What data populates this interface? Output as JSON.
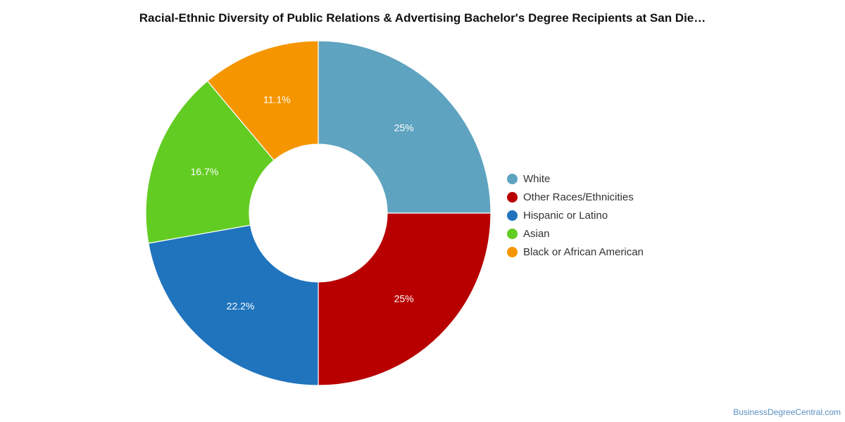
{
  "chart_data": {
    "type": "pie",
    "title": "Racial-Ethnic Diversity of Public Relations & Advertising Bachelor's Degree Recipients at San Die…",
    "legend_position": "right",
    "slices": [
      {
        "label": "White",
        "value": 25,
        "data_label": "25%",
        "color": "#5ea3c0"
      },
      {
        "label": "Other Races/Ethnicities",
        "value": 25,
        "data_label": "25%",
        "color": "#b80000"
      },
      {
        "label": "Hispanic or Latino",
        "value": 22.2,
        "data_label": "22.2%",
        "color": "#1f74bd"
      },
      {
        "label": "Asian",
        "value": 16.7,
        "data_label": "16.7%",
        "color": "#63cc22"
      },
      {
        "label": "Black or African American",
        "value": 11.1,
        "data_label": "11.1%",
        "color": "#f59600"
      }
    ]
  },
  "footer": {
    "credit": "BusinessDegreeCentral.com"
  }
}
